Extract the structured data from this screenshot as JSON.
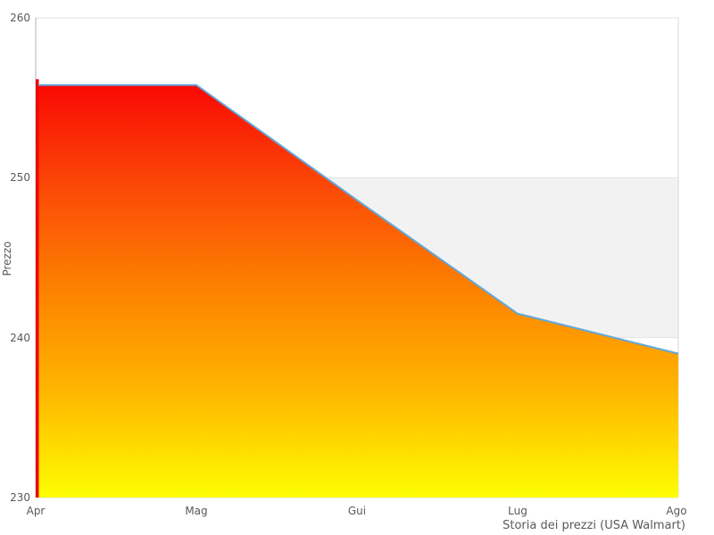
{
  "page": {
    "background": "#ffffff"
  },
  "chart_data": {
    "type": "area",
    "title": "",
    "caption": "Storia dei prezzi (USA Walmart)",
    "ylabel": "Prezzo",
    "xlabel": "",
    "categories": [
      "Apr",
      "Mag",
      "Gui",
      "Lug",
      "Ago"
    ],
    "series": [
      {
        "name": "Prezzo",
        "values": [
          255.8,
          255.8,
          248.6,
          241.5,
          239.0
        ]
      }
    ],
    "ylim": [
      230,
      260
    ],
    "yticks": [
      260,
      250,
      240,
      230
    ],
    "grid": "horizontal",
    "legend": "none",
    "band": {
      "from": 250,
      "to": 240,
      "color": "#f2f2f2"
    },
    "colors": {
      "line": "#5fa8dc",
      "left_edge_marker": "#ee0707",
      "gradient": [
        "#fa0903",
        "#fb4a07",
        "#fd8200",
        "#ffb800",
        "#fefe00"
      ],
      "axis_line": "#b3b3b3",
      "border": "#d9d9d9",
      "gridline": "#e3e3e3",
      "tick_text": "#595959"
    }
  }
}
